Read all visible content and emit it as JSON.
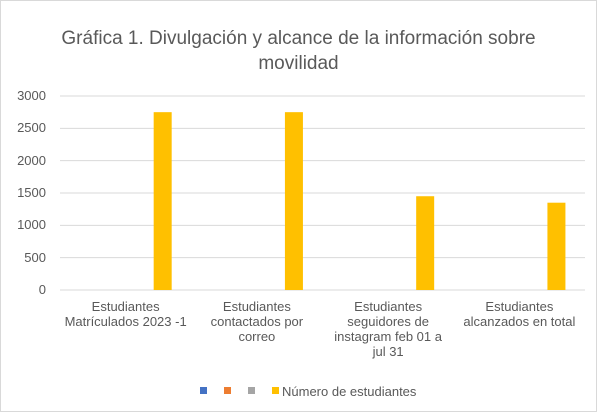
{
  "chart_data": {
    "type": "bar",
    "title": "Gráfica 1. Divulgación y alcance de la información sobre movilidad",
    "categories": [
      "Estudiantes Matrículados 2023 -1",
      "Estudiantes contactados por correo",
      "Estudiantes seguidores de instagram feb 01 a jul 31",
      "Estudiantes alcanzados en total"
    ],
    "series": [
      {
        "color": "#4472c4",
        "values": [
          null,
          null,
          null,
          null
        ]
      },
      {
        "color": "#ed7d31",
        "values": [
          null,
          null,
          null,
          null
        ]
      },
      {
        "color": "#a5a5a5",
        "values": [
          null,
          null,
          null,
          null
        ]
      },
      {
        "name": "Número de estudiantes",
        "color": "#ffc000",
        "values": [
          2750,
          2750,
          1450,
          1350
        ]
      }
    ],
    "ylim": [
      0,
      3000
    ],
    "yticks": [
      0,
      500,
      1000,
      1500,
      2000,
      2500,
      3000
    ],
    "grid": true,
    "legend": "bottom"
  }
}
